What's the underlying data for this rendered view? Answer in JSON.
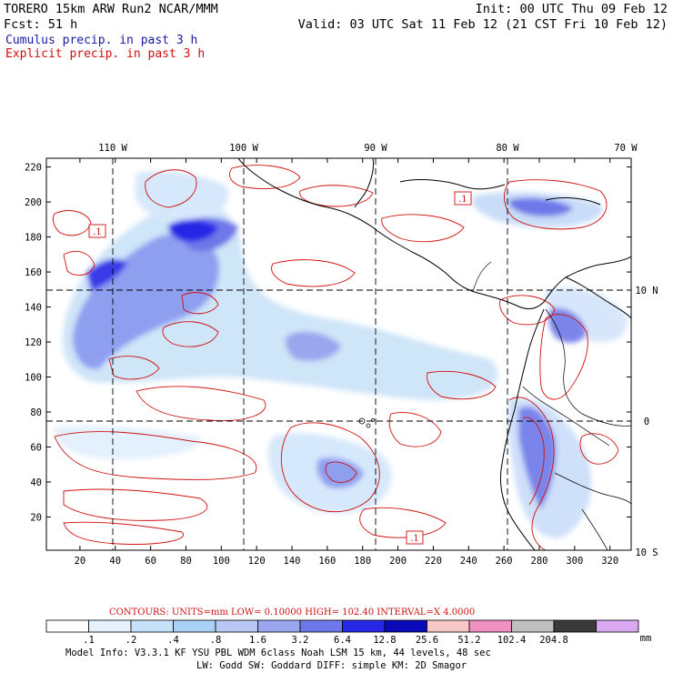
{
  "header": {
    "model": "TORERO  15km ARW   Run2    NCAR/MMM",
    "init": "Init: 00 UTC Thu 09 Feb 12",
    "fcst": "Fcst:   51 h",
    "valid": "Valid: 03 UTC Sat 11 Feb 12 (21 CST Fri 10 Feb 12)",
    "legend_cumulus": "Cumulus precip. in past 3 h",
    "legend_explicit": "Explicit precip. in past 3 h"
  },
  "colors": {
    "cumulus_text": "#1a1aa0",
    "explicit_contour": "#d01010"
  },
  "chart_data": {
    "type": "heatmap",
    "title": "",
    "x_ticks": [
      "20",
      "40",
      "60",
      "80",
      "100",
      "120",
      "140",
      "160",
      "180",
      "200",
      "220",
      "240",
      "260",
      "280",
      "300",
      "320"
    ],
    "y_ticks": [
      "20",
      "40",
      "60",
      "80",
      "100",
      "120",
      "140",
      "160",
      "180",
      "200",
      "220"
    ],
    "lon_labels": [
      "110 W",
      "100 W",
      "90 W",
      "80 W",
      "70 W"
    ],
    "lat_labels": [
      "10 N",
      "0",
      "10 S"
    ],
    "xlim": [
      1,
      332
    ],
    "ylim": [
      1,
      225
    ],
    "contour_labels": [
      ".1",
      ".1",
      ".1"
    ],
    "colorbar": {
      "levels": [
        ".1",
        ".2",
        ".4",
        ".8",
        "1.6",
        "3.2",
        "6.4",
        "12.8",
        "25.6",
        "51.2",
        "102.4",
        "204.8"
      ],
      "colors": [
        "#ffffff",
        "#e6f2ff",
        "#c6e2fb",
        "#a9d1f5",
        "#b8c8f2",
        "#9aa6ee",
        "#6e78e8",
        "#2727e6",
        "#0a0ab8",
        "#f8c8c8",
        "#f090c0",
        "#c0c0c0",
        "#3a3a3a",
        "#d8a8f0"
      ],
      "unit": "mm"
    },
    "contours_line": "CONTOURS:  UNITS=mm  LOW= 0.10000      HIGH=  102.40      INTERVAL=X  4.0000"
  },
  "footer": {
    "line1": "Model Info: V3.3.1    KF     YSU PBL   WDM 6class  Noah LSM  15 km,    44 levels,    48 sec",
    "line2": "LW: Godd SW: Goddard DIFF: simple KM: 2D Smagor"
  }
}
